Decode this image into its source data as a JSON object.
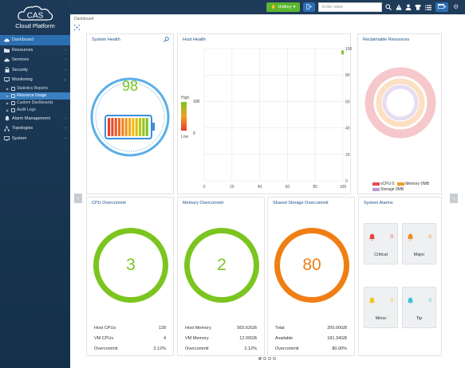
{
  "app": {
    "brand": "Cloud Platform",
    "logo_text": "CAS"
  },
  "sidebar": {
    "items": [
      {
        "label": "Dashboard",
        "icon": "cloud-icon",
        "chevron": ""
      },
      {
        "label": "Resources",
        "icon": "folder-icon",
        "chevron": "›"
      },
      {
        "label": "Services",
        "icon": "cloud-icon",
        "chevron": "›"
      },
      {
        "label": "Security",
        "icon": "lock-icon",
        "chevron": "›"
      },
      {
        "label": "Monitoring",
        "icon": "monitor-icon",
        "chevron": "⌄"
      }
    ],
    "sub_items": [
      {
        "label": "Statistics Reports"
      },
      {
        "label": "Resource Usage"
      },
      {
        "label": "Custom Dashboards"
      },
      {
        "label": "Audit Logs"
      }
    ],
    "items_after": [
      {
        "label": "Alarm Management",
        "icon": "bell-icon",
        "chevron": "›"
      },
      {
        "label": "Topologies",
        "icon": "topology-icon",
        "chevron": "›"
      },
      {
        "label": "System",
        "icon": "monitor-icon",
        "chevron": "›"
      }
    ]
  },
  "topbar": {
    "hotkey_label": "Hotkey",
    "search_placeholder": "Enter alias"
  },
  "breadcrumb": "Dashboard",
  "system_health": {
    "title": "System Health",
    "score": "98",
    "score_color": "#7cc520"
  },
  "host_health": {
    "title": "Host Health",
    "legend_high": "High",
    "legend_high_val": "100",
    "legend_low": "Low",
    "legend_low_val": "0",
    "x_ticks": [
      "0",
      "20",
      "40",
      "60",
      "80",
      "100"
    ],
    "y_ticks": [
      "100",
      "80",
      "60",
      "40",
      "20",
      "0"
    ]
  },
  "chart_data": {
    "type": "scatter",
    "title": "Host Health",
    "xlim": [
      0,
      100
    ],
    "ylim": [
      0,
      100
    ],
    "x_ticks": [
      0,
      20,
      40,
      60,
      80,
      100
    ],
    "y_ticks": [
      0,
      20,
      40,
      60,
      80,
      100
    ],
    "points": [
      {
        "x": 100,
        "y": 98
      }
    ],
    "color_scale": {
      "high": "#7cc520",
      "low": "#e83a2f",
      "max": 100,
      "min": 0
    }
  },
  "reclaimable": {
    "title": "Reclaimable Resources",
    "legend": [
      {
        "label": "vCPU 0",
        "color": "#e84a54"
      },
      {
        "label": "Memory 0MB",
        "color": "#f39a28"
      },
      {
        "label": "Storage 0MB",
        "color": "#b79ad6"
      }
    ]
  },
  "cpu": {
    "title": "CPU Overcommit",
    "value": "3",
    "color": "#7cc520",
    "rows": [
      {
        "label": "Host CPUs",
        "value": "128"
      },
      {
        "label": "VM CPUs",
        "value": "4"
      },
      {
        "label": "Overcommit",
        "value": "3.12%"
      }
    ]
  },
  "memory": {
    "title": "Memory Overcommit",
    "value": "2",
    "color": "#7cc520",
    "rows": [
      {
        "label": "Host Memory",
        "value": "565.62GB"
      },
      {
        "label": "VM Memory",
        "value": "12.00GB"
      },
      {
        "label": "Overcommit",
        "value": "2.12%"
      }
    ]
  },
  "storage": {
    "title": "Shared Storage Overcommit",
    "value": "80",
    "color": "#f07e14",
    "rows": [
      {
        "label": "Total",
        "value": "200.00GB"
      },
      {
        "label": "Available",
        "value": "181.34GB"
      },
      {
        "label": "Overcommit",
        "value": "80.00%"
      }
    ]
  },
  "alarms": {
    "title": "System Alarms",
    "items": [
      {
        "label": "Critical",
        "count": "0",
        "color": "#e6433a"
      },
      {
        "label": "Major",
        "count": "0",
        "color": "#f08a1c"
      },
      {
        "label": "Minor",
        "count": "0",
        "color": "#f0c419"
      },
      {
        "label": "Tip",
        "count": "0",
        "color": "#3cc0d8"
      }
    ]
  }
}
